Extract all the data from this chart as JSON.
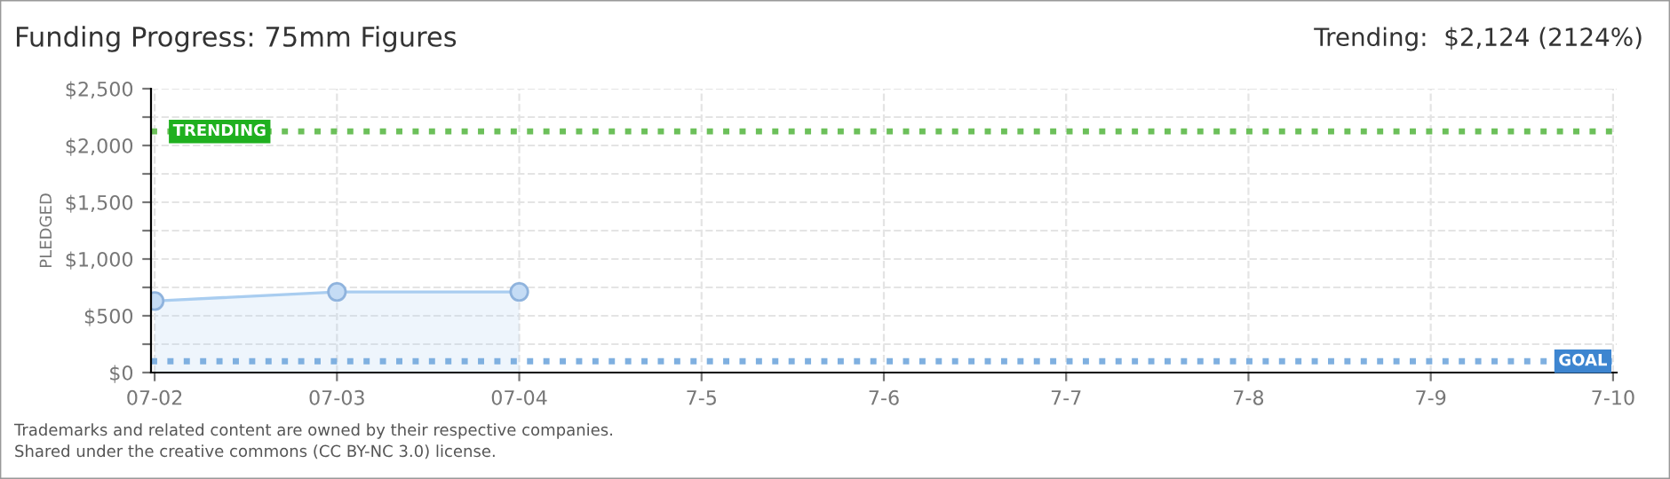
{
  "chart_data": {
    "type": "area",
    "title": "Funding Progress: 75mm Figures",
    "subtitle": "Trending:  $2,124 (2124%)",
    "ylabel": "PLEDGED",
    "categories": [
      "07-02",
      "07-03",
      "07-04",
      "7-5",
      "7-6",
      "7-7",
      "7-8",
      "7-9",
      "7-10"
    ],
    "series": [
      {
        "color": "#a9cdf0",
        "values": [
          630,
          710,
          710,
          null,
          null,
          null,
          null,
          null,
          null
        ]
      }
    ],
    "ylim": [
      0,
      2500
    ],
    "yticks": [
      {
        "value": 0,
        "label": "$0"
      },
      {
        "value": 250,
        "label": null
      },
      {
        "value": 500,
        "label": "$500"
      },
      {
        "value": 750,
        "label": null
      },
      {
        "value": 1000,
        "label": "$1,000"
      },
      {
        "value": 1250,
        "label": null
      },
      {
        "value": 1500,
        "label": "$1,500"
      },
      {
        "value": 1750,
        "label": null
      },
      {
        "value": 2000,
        "label": "$2,000"
      },
      {
        "value": 2250,
        "label": null
      },
      {
        "value": 2500,
        "label": "$2,500"
      }
    ],
    "ref_lines": [
      {
        "axis": "y",
        "value": 2124,
        "label": "TRENDING",
        "color": "#6cc05a",
        "line_style": "dotted"
      },
      {
        "axis": "y",
        "value": 100,
        "label": "GOAL",
        "color": "#7fb0e0",
        "line_style": "dotted"
      }
    ],
    "grid": true,
    "marker": "circle",
    "legend": false,
    "annotations": [
      "Trademarks and related content are owned by their respective companies.",
      "Shared under the creative commons (CC BY-NC 3.0) license."
    ]
  }
}
